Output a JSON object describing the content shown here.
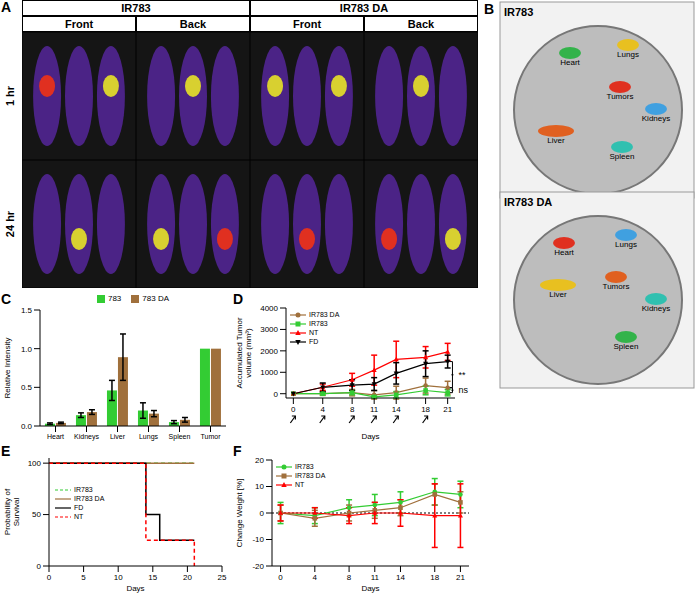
{
  "image_panels": [
    {
      "letter": "A",
      "column_groups": [
        "IR783",
        "IR783 DA"
      ],
      "views": [
        "Front",
        "Back"
      ],
      "rows": [
        "1 hr",
        "24 hr"
      ]
    },
    {
      "letter": "B",
      "dishes": [
        {
          "title": "IR783",
          "organs": [
            "Heart",
            "Lungs",
            "Tumors",
            "Kidneys",
            "Liver",
            "Spleen"
          ]
        },
        {
          "title": "IR783 DA",
          "organs": [
            "Liver",
            "Heart",
            "Lungs",
            "Tumors",
            "Kidneys",
            "Spleen"
          ]
        }
      ]
    }
  ],
  "chart_data": [
    {
      "letter": "C",
      "type": "bar",
      "y_label": "Relative Intensity",
      "categories": [
        "Heart",
        "Kidneys",
        "Liver",
        "Lungs",
        "Spleen",
        "Tumor"
      ],
      "series": [
        {
          "name": "783",
          "color": "#33cc33",
          "values": [
            0.03,
            0.14,
            0.46,
            0.2,
            0.05,
            1
          ],
          "errors": [
            0.01,
            0.03,
            0.13,
            0.1,
            0.02,
            0
          ]
        },
        {
          "name": "783 DA",
          "color": "#a0703c",
          "values": [
            0.04,
            0.18,
            0.89,
            0.16,
            0.08,
            1
          ],
          "errors": [
            0.01,
            0.03,
            0.3,
            0.04,
            0.03,
            0
          ]
        }
      ],
      "ylim": [
        0,
        1.5
      ],
      "yticks": [
        {
          "value": 0,
          "label": "0.0"
        },
        {
          "value": 0.5,
          "label": "0.5"
        },
        {
          "value": 1,
          "label": "1.0"
        },
        {
          "value": 1.5,
          "label": "1.5"
        }
      ],
      "legend": "top"
    },
    {
      "letter": "D",
      "type": "line",
      "x_label": "Days",
      "y_label": "Accumulated Tumor volume (mm³)",
      "x": [
        0,
        4,
        8,
        11,
        14,
        18,
        21
      ],
      "series": [
        {
          "name": "IR783 DA",
          "color": "#a0703c",
          "marker": "circle",
          "values": [
            0,
            0,
            50,
            -50,
            50,
            380,
            280
          ],
          "errors": [
            0,
            80,
            150,
            200,
            300,
            350,
            300
          ]
        },
        {
          "name": "IR783",
          "color": "#33cc33",
          "marker": "square",
          "values": [
            0,
            0,
            50,
            -150,
            -50,
            150,
            50
          ],
          "errors": [
            0,
            50,
            100,
            50,
            150,
            200,
            150
          ]
        },
        {
          "name": "NT",
          "color": "#ff0000",
          "marker": "triangle",
          "values": [
            0,
            300,
            650,
            1100,
            1600,
            1700,
            1950
          ],
          "errors": [
            0,
            150,
            300,
            700,
            850,
            500,
            400
          ]
        },
        {
          "name": "FD",
          "color": "#000000",
          "marker": "triangle-down",
          "values": [
            0,
            300,
            400,
            450,
            950,
            1400,
            1500
          ],
          "errors": [
            0,
            200,
            250,
            300,
            500,
            600,
            300
          ]
        }
      ],
      "xlim": [
        -1,
        22
      ],
      "xticks": [
        0,
        4,
        8,
        11,
        14,
        18,
        21
      ],
      "ylim": [
        -200,
        4000
      ],
      "yticks": [
        0,
        1000,
        2000,
        3000,
        4000
      ],
      "treatment_days": [
        0,
        4,
        8,
        11,
        14,
        18
      ],
      "annotations": [
        {
          "text": "**",
          "groups": [
            [
              "NT",
              "FD"
            ],
            [
              "IR783 DA",
              "IR783"
            ]
          ]
        },
        {
          "text": "ns",
          "groups": [
            [
              "IR783 DA"
            ],
            [
              "IR783"
            ]
          ]
        }
      ],
      "legend": "top-left"
    },
    {
      "letter": "E",
      "type": "step",
      "x_label": "Days",
      "y_label": "Probability of Survival",
      "series": [
        {
          "name": "IR783",
          "color": "#33cc33",
          "line_style": "dashed",
          "x": [
            0,
            21
          ],
          "values": [
            100,
            100
          ]
        },
        {
          "name": "IR783 DA",
          "color": "#a0703c",
          "line_style": "solid",
          "x": [
            0,
            21
          ],
          "values": [
            100,
            100
          ]
        },
        {
          "name": "FD",
          "color": "#000000",
          "line_style": "solid",
          "x": [
            0,
            14,
            16,
            21
          ],
          "values": [
            100,
            50,
            25,
            25
          ]
        },
        {
          "name": "NT",
          "color": "#ff0000",
          "line_style": "dashed",
          "x": [
            0,
            14,
            21
          ],
          "values": [
            100,
            25,
            0
          ]
        }
      ],
      "xlim": [
        0,
        25
      ],
      "xticks": [
        0,
        5,
        10,
        15,
        20,
        25
      ],
      "ylim": [
        0,
        105
      ],
      "yticks": [
        0,
        50,
        100
      ],
      "legend": "left"
    },
    {
      "letter": "F",
      "type": "line",
      "x_label": "Days",
      "y_label": "Change Weight [%]",
      "x": [
        0,
        4,
        8,
        11,
        14,
        18,
        21
      ],
      "series": [
        {
          "name": "IR783",
          "color": "#33cc33",
          "marker": "circle",
          "values": [
            0,
            -1,
            2,
            3,
            4,
            8,
            7
          ],
          "errors": [
            4,
            3,
            3,
            4,
            4,
            5,
            5
          ]
        },
        {
          "name": "IR783 DA",
          "color": "#a0703c",
          "marker": "square",
          "values": [
            0,
            -2,
            0,
            1,
            2,
            7,
            4
          ],
          "errors": [
            3,
            3,
            3,
            3,
            3,
            4,
            4
          ]
        },
        {
          "name": "NT",
          "color": "#ff0000",
          "marker": "triangle",
          "values": [
            0,
            0,
            -1,
            0,
            0,
            -1,
            -1
          ],
          "errors": [
            3,
            2,
            3,
            4,
            5,
            12,
            12
          ]
        }
      ],
      "xlim": [
        -1,
        22
      ],
      "xticks": [
        0,
        4,
        8,
        11,
        14,
        18,
        21
      ],
      "ylim": [
        -20,
        20
      ],
      "yticks": [
        -20,
        -10,
        0,
        10,
        20
      ],
      "baseline": 0,
      "legend": "top-left"
    }
  ]
}
